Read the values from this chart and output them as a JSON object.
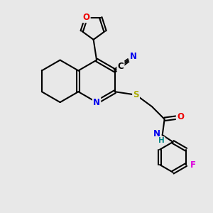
{
  "bg_color": "#e8e8e8",
  "bond_color": "#000000",
  "bond_width": 1.5,
  "atom_colors": {
    "N": "#0000ee",
    "O": "#ee0000",
    "S": "#aaaa00",
    "F": "#dd00dd",
    "C": "#000000",
    "H": "#008888"
  },
  "font_size": 8.5,
  "fig_size": [
    3.0,
    3.0
  ],
  "dpi": 100
}
